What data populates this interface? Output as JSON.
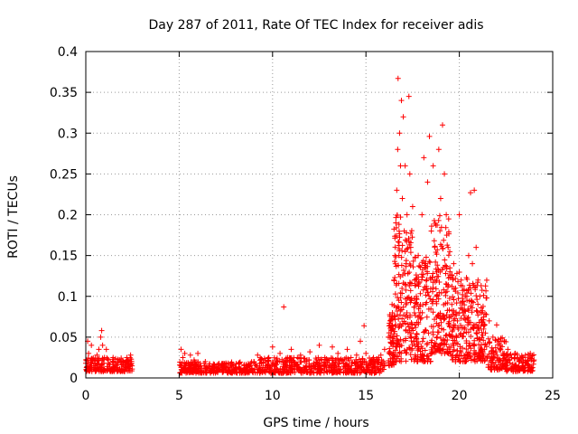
{
  "chart_data": {
    "type": "scatter",
    "title": "Day 287 of 2011, Rate Of TEC Index for receiver adis",
    "xlabel": "GPS time / hours",
    "ylabel": "ROTI / TECUs",
    "xlim": [
      0,
      25
    ],
    "ylim": [
      0,
      0.4
    ],
    "xticks": [
      0,
      5,
      10,
      15,
      20,
      25
    ],
    "yticks": [
      0,
      0.05,
      0.1,
      0.15,
      0.2,
      0.25,
      0.3,
      0.35,
      0.4
    ],
    "ytick_labels": [
      "0",
      "0.05",
      "0.1",
      "0.15",
      "0.2",
      "0.25",
      "0.3",
      "0.35",
      "0.4"
    ],
    "grid": true,
    "marker": "+",
    "color": "#ff0000",
    "points": [
      [
        0.0,
        0.018
      ],
      [
        0.1,
        0.045
      ],
      [
        0.15,
        0.03
      ],
      [
        0.2,
        0.012
      ],
      [
        0.3,
        0.04
      ],
      [
        0.35,
        0.022
      ],
      [
        0.5,
        0.015
      ],
      [
        0.6,
        0.028
      ],
      [
        0.7,
        0.035
      ],
      [
        0.8,
        0.05
      ],
      [
        0.85,
        0.058
      ],
      [
        0.9,
        0.04
      ],
      [
        1.0,
        0.025
      ],
      [
        1.1,
        0.035
      ],
      [
        1.2,
        0.018
      ],
      [
        1.3,
        0.01
      ],
      [
        1.5,
        0.02
      ],
      [
        1.6,
        0.013
      ],
      [
        1.8,
        0.022
      ],
      [
        1.9,
        0.016
      ],
      [
        2.0,
        0.02
      ],
      [
        2.1,
        0.014
      ],
      [
        2.2,
        0.025
      ],
      [
        2.3,
        0.018
      ],
      [
        2.4,
        0.028
      ],
      [
        5.1,
        0.035
      ],
      [
        5.2,
        0.025
      ],
      [
        5.3,
        0.03
      ],
      [
        5.4,
        0.018
      ],
      [
        5.6,
        0.028
      ],
      [
        5.8,
        0.022
      ],
      [
        6.0,
        0.03
      ],
      [
        6.2,
        0.012
      ],
      [
        6.4,
        0.02
      ],
      [
        6.6,
        0.015
      ],
      [
        6.8,
        0.012
      ],
      [
        7.0,
        0.014
      ],
      [
        7.3,
        0.01
      ],
      [
        7.6,
        0.012
      ],
      [
        7.9,
        0.008
      ],
      [
        8.2,
        0.01
      ],
      [
        8.5,
        0.012
      ],
      [
        8.8,
        0.015
      ],
      [
        9.0,
        0.02
      ],
      [
        9.2,
        0.028
      ],
      [
        9.5,
        0.018
      ],
      [
        9.8,
        0.025
      ],
      [
        10.0,
        0.038
      ],
      [
        10.2,
        0.022
      ],
      [
        10.4,
        0.03
      ],
      [
        10.6,
        0.087
      ],
      [
        10.8,
        0.025
      ],
      [
        11.0,
        0.035
      ],
      [
        11.2,
        0.018
      ],
      [
        11.5,
        0.028
      ],
      [
        11.8,
        0.02
      ],
      [
        12.0,
        0.032
      ],
      [
        12.2,
        0.018
      ],
      [
        12.5,
        0.04
      ],
      [
        12.8,
        0.025
      ],
      [
        13.0,
        0.022
      ],
      [
        13.2,
        0.038
      ],
      [
        13.5,
        0.03
      ],
      [
        13.8,
        0.018
      ],
      [
        14.0,
        0.035
      ],
      [
        14.2,
        0.025
      ],
      [
        14.5,
        0.028
      ],
      [
        14.7,
        0.045
      ],
      [
        14.9,
        0.064
      ],
      [
        15.0,
        0.03
      ],
      [
        15.2,
        0.018
      ],
      [
        15.4,
        0.025
      ],
      [
        15.6,
        0.02
      ],
      [
        15.8,
        0.028
      ],
      [
        16.0,
        0.035
      ],
      [
        16.2,
        0.05
      ],
      [
        16.3,
        0.07
      ],
      [
        16.4,
        0.09
      ],
      [
        16.5,
        0.12
      ],
      [
        16.55,
        0.15
      ],
      [
        16.6,
        0.19
      ],
      [
        16.65,
        0.23
      ],
      [
        16.7,
        0.28
      ],
      [
        16.72,
        0.367
      ],
      [
        16.8,
        0.3
      ],
      [
        16.85,
        0.26
      ],
      [
        16.9,
        0.34
      ],
      [
        16.95,
        0.22
      ],
      [
        17.0,
        0.32
      ],
      [
        17.05,
        0.18
      ],
      [
        17.1,
        0.26
      ],
      [
        17.15,
        0.14
      ],
      [
        17.2,
        0.2
      ],
      [
        17.3,
        0.345
      ],
      [
        17.35,
        0.25
      ],
      [
        17.4,
        0.16
      ],
      [
        17.5,
        0.21
      ],
      [
        17.6,
        0.12
      ],
      [
        17.7,
        0.1
      ],
      [
        17.8,
        0.15
      ],
      [
        17.9,
        0.08
      ],
      [
        18.0,
        0.2
      ],
      [
        18.1,
        0.27
      ],
      [
        18.2,
        0.14
      ],
      [
        18.3,
        0.24
      ],
      [
        18.4,
        0.296
      ],
      [
        18.5,
        0.18
      ],
      [
        18.6,
        0.26
      ],
      [
        18.7,
        0.12
      ],
      [
        18.8,
        0.1
      ],
      [
        18.9,
        0.28
      ],
      [
        19.0,
        0.22
      ],
      [
        19.1,
        0.31
      ],
      [
        19.2,
        0.25
      ],
      [
        19.3,
        0.2
      ],
      [
        19.4,
        0.16
      ],
      [
        19.5,
        0.13
      ],
      [
        19.6,
        0.09
      ],
      [
        19.7,
        0.14
      ],
      [
        19.8,
        0.11
      ],
      [
        19.9,
        0.07
      ],
      [
        20.0,
        0.2
      ],
      [
        20.1,
        0.12
      ],
      [
        20.2,
        0.08
      ],
      [
        20.3,
        0.06
      ],
      [
        20.4,
        0.1
      ],
      [
        20.5,
        0.15
      ],
      [
        20.6,
        0.227
      ],
      [
        20.7,
        0.14
      ],
      [
        20.8,
        0.23
      ],
      [
        20.9,
        0.16
      ],
      [
        21.0,
        0.12
      ],
      [
        21.1,
        0.1
      ],
      [
        21.2,
        0.08
      ],
      [
        21.3,
        0.06
      ],
      [
        21.4,
        0.055
      ],
      [
        21.6,
        0.07
      ],
      [
        21.8,
        0.05
      ],
      [
        22.0,
        0.065
      ],
      [
        22.2,
        0.04
      ],
      [
        22.4,
        0.03
      ],
      [
        22.6,
        0.035
      ],
      [
        22.8,
        0.025
      ],
      [
        23.0,
        0.03
      ],
      [
        23.2,
        0.02
      ],
      [
        23.4,
        0.025
      ],
      [
        23.6,
        0.018
      ],
      [
        23.8,
        0.03
      ],
      [
        24.0,
        0.022
      ]
    ],
    "density_bands": [
      [
        0.0,
        2.5,
        0.008,
        0.025
      ],
      [
        5.0,
        9.0,
        0.006,
        0.02
      ],
      [
        9.0,
        16.0,
        0.006,
        0.025
      ],
      [
        16.2,
        16.5,
        0.015,
        0.08
      ],
      [
        16.5,
        17.5,
        0.02,
        0.2
      ],
      [
        17.5,
        18.5,
        0.02,
        0.15
      ],
      [
        18.5,
        19.5,
        0.03,
        0.2
      ],
      [
        19.5,
        20.5,
        0.02,
        0.13
      ],
      [
        20.5,
        21.5,
        0.02,
        0.12
      ],
      [
        21.5,
        22.5,
        0.01,
        0.05
      ],
      [
        22.5,
        24.0,
        0.008,
        0.03
      ]
    ]
  }
}
